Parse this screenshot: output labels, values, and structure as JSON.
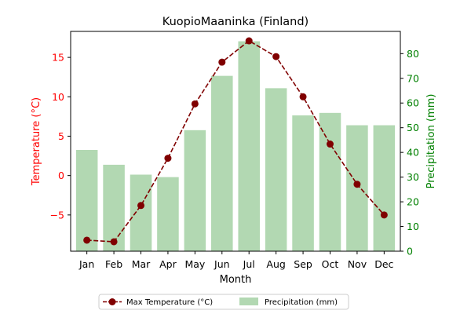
{
  "chart_data": {
    "type": "bar+line",
    "title": "KuopioMaaninka (Finland)",
    "xlabel": "Month",
    "ylabel_left": "Temperature (°C)",
    "ylabel_right": "Precipitation (mm)",
    "categories": [
      "Jan",
      "Feb",
      "Mar",
      "Apr",
      "May",
      "Jun",
      "Jul",
      "Aug",
      "Sep",
      "Oct",
      "Nov",
      "Dec"
    ],
    "series": [
      {
        "name": "Max Temperature (°C)",
        "type": "line",
        "axis": "left",
        "color": "#800000",
        "values": [
          -8.2,
          -8.4,
          -3.8,
          2.2,
          9.1,
          14.4,
          17.1,
          15.1,
          10.0,
          4.0,
          -1.1,
          -5.0
        ]
      },
      {
        "name": "Precipitation (mm)",
        "type": "bar",
        "axis": "right",
        "color": "#b2d8b2",
        "values": [
          41,
          35,
          31,
          30,
          49,
          71,
          85,
          66,
          55,
          56,
          51,
          51
        ]
      }
    ],
    "ylim_left": [
      -9.6,
      18.3
    ],
    "yticks_left": [
      -5,
      0,
      5,
      10,
      15
    ],
    "ylim_right": [
      0,
      89
    ],
    "yticks_right": [
      0,
      10,
      20,
      30,
      40,
      50,
      60,
      70,
      80
    ],
    "left_axis_color": "#ff0000",
    "right_axis_color": "#008000",
    "grid": false,
    "legend_placement": "bottom-center"
  }
}
